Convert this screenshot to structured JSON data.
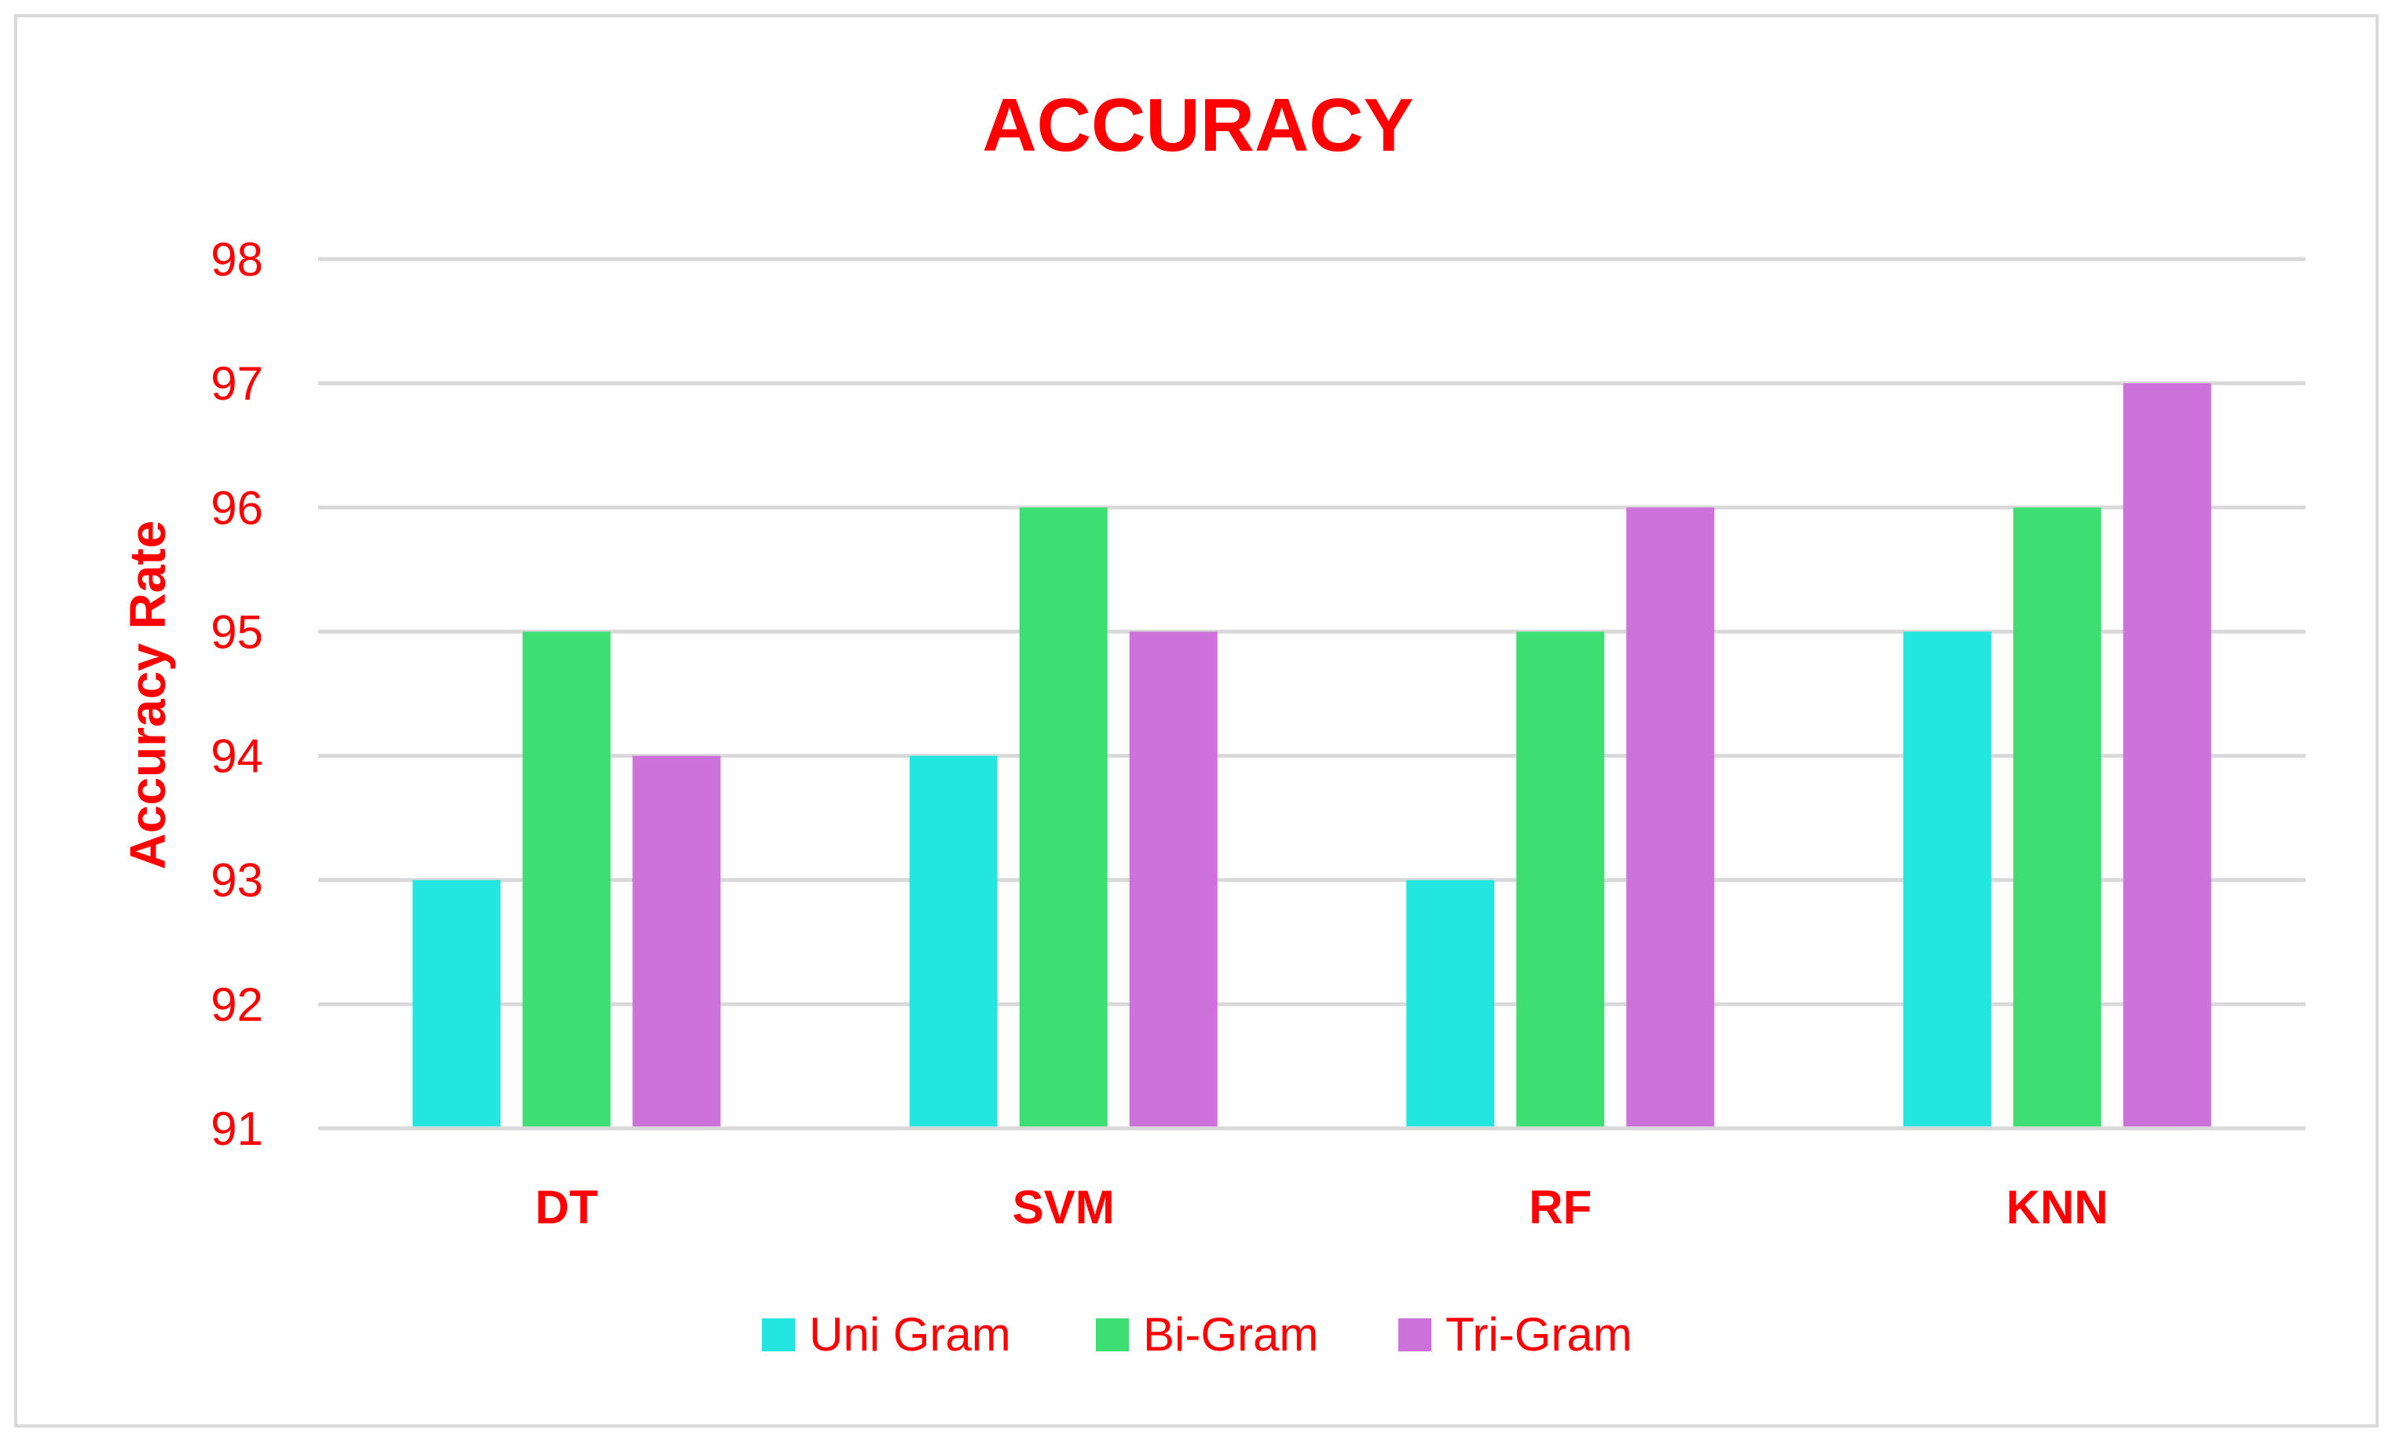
{
  "chart_data": {
    "type": "bar",
    "title": "ACCURACY",
    "xlabel": "",
    "ylabel": "Accuracy Rate",
    "categories": [
      "DT",
      "SVM",
      "RF",
      "KNN"
    ],
    "series": [
      {
        "name": "Uni Gram",
        "color": "#24e6e0",
        "values": [
          93,
          94,
          93,
          95
        ]
      },
      {
        "name": "Bi-Gram",
        "color": "#3ddf73",
        "values": [
          95,
          96,
          95,
          96
        ]
      },
      {
        "name": "Tri-Gram",
        "color": "#cd71db",
        "values": [
          94,
          95,
          96,
          97
        ]
      }
    ],
    "ylim": [
      91,
      98
    ],
    "yticks": [
      91,
      92,
      93,
      94,
      95,
      96,
      97,
      98
    ],
    "grid": true,
    "legend": "bottom",
    "text_color": "#ff0000",
    "grid_color": "#d9d9d9"
  }
}
